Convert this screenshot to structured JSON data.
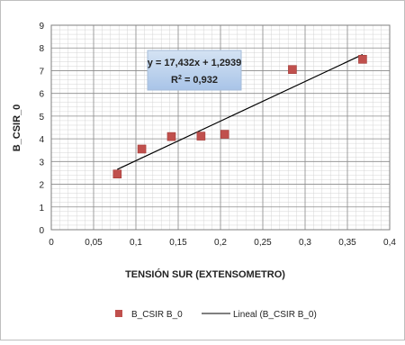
{
  "chart_data": {
    "type": "scatter",
    "title": "",
    "xlabel": "TENSIÓN SUR (EXTENSOMETRO)",
    "ylabel": "B_CSIR_0",
    "xlim": [
      0,
      0.4
    ],
    "ylim": [
      0,
      9
    ],
    "x_ticks": [
      "0",
      "0,05",
      "0,1",
      "0,15",
      "0,2",
      "0,25",
      "0,3",
      "0,35",
      "0,4"
    ],
    "y_ticks": [
      "0",
      "1",
      "2",
      "3",
      "4",
      "5",
      "6",
      "7",
      "8",
      "9"
    ],
    "grid": true,
    "series": [
      {
        "name": "B_CSIR B_0",
        "marker_color": "#c0504d",
        "points": [
          {
            "x": 0.078,
            "y": 2.45
          },
          {
            "x": 0.107,
            "y": 3.55
          },
          {
            "x": 0.142,
            "y": 4.1
          },
          {
            "x": 0.177,
            "y": 4.12
          },
          {
            "x": 0.205,
            "y": 4.2
          },
          {
            "x": 0.285,
            "y": 7.05
          },
          {
            "x": 0.368,
            "y": 7.5
          }
        ]
      }
    ],
    "trendline": {
      "name": "Lineal (B_CSIR_0)",
      "slope": 17.432,
      "intercept": 1.2939,
      "x_range": [
        0.078,
        0.368
      ],
      "color": "#000000"
    },
    "annotation": {
      "equation": "y = 17,432x + 1,2939",
      "r2_prefix": "R",
      "r2_sup": "2",
      "r2_value": " = 0,932"
    },
    "legend": {
      "placement": "bottom",
      "marker_label": "B_CSIR B_0",
      "line_label": "Lineal (B_CSIR B_0)"
    }
  }
}
